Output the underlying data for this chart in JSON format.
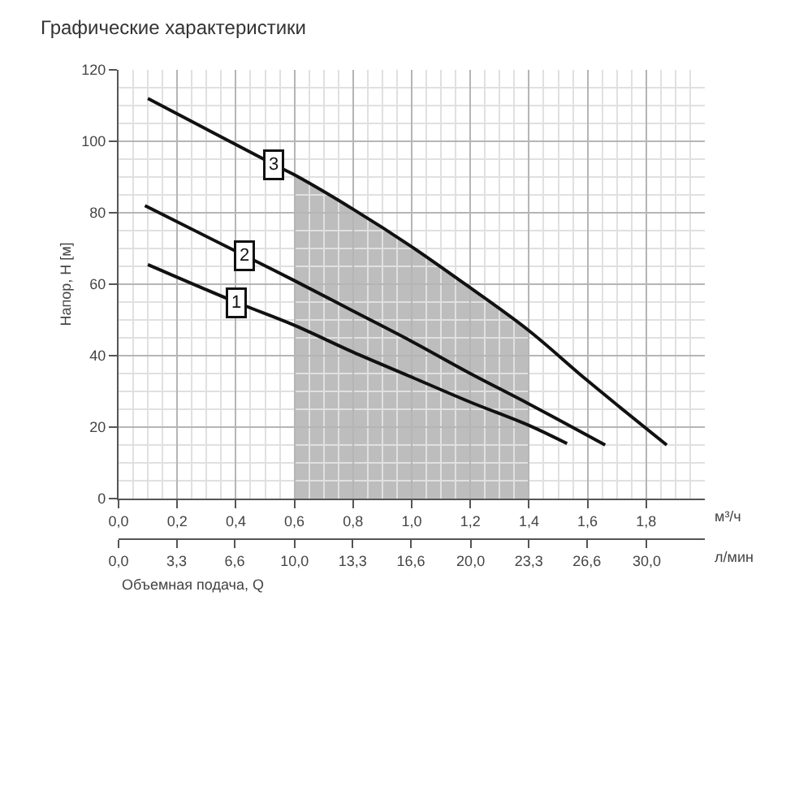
{
  "chart_data": {
    "type": "line",
    "title": "Графические характеристики",
    "xlabel": "м³/ч",
    "ylabel": "Напор, Н [м]",
    "x2label": "л/мин",
    "annotations": [
      "Объемная подача, Q"
    ],
    "xlim": [
      0,
      2.0
    ],
    "xticks": [
      {
        "value": 0,
        "label": "0,0"
      },
      {
        "value": 0.2,
        "label": "0,2"
      },
      {
        "value": 0.4,
        "label": "0,4"
      },
      {
        "value": 0.6,
        "label": "0,6"
      },
      {
        "value": 0.8,
        "label": "0,8"
      },
      {
        "value": 1.0,
        "label": "1,0"
      },
      {
        "value": 1.2,
        "label": "1,2"
      },
      {
        "value": 1.4,
        "label": "1,4"
      },
      {
        "value": 1.6,
        "label": "1,6"
      },
      {
        "value": 1.8,
        "label": "1,8"
      }
    ],
    "x2lim": [
      0,
      33.3
    ],
    "x2ticks": [
      {
        "value": 0,
        "label": "0,0"
      },
      {
        "value": 3.3,
        "label": "3,3"
      },
      {
        "value": 6.6,
        "label": "6,6"
      },
      {
        "value": 10,
        "label": "10,0"
      },
      {
        "value": 13.3,
        "label": "13,3"
      },
      {
        "value": 16.6,
        "label": "16,6"
      },
      {
        "value": 20,
        "label": "20,0"
      },
      {
        "value": 23.3,
        "label": "23,3"
      },
      {
        "value": 26.6,
        "label": "26,6"
      },
      {
        "value": 30,
        "label": "30,0"
      }
    ],
    "ylim": [
      0,
      120
    ],
    "yticks": [
      0,
      20,
      40,
      60,
      80,
      100,
      120
    ],
    "grid": true,
    "legend": false,
    "marker": "none",
    "line_style": "solid",
    "bands": [
      {
        "axis": "x",
        "from": 0.6,
        "to": 1.4,
        "color": "#bdbdbd"
      }
    ],
    "series": [
      {
        "name": "3",
        "color": "#111111",
        "x": [
          0.1,
          0.53,
          0.6,
          0.8,
          1.0,
          1.2,
          1.4,
          1.6,
          1.87
        ],
        "values": [
          112,
          93.5,
          90.6,
          81,
          70.5,
          59,
          47,
          33,
          15
        ]
      },
      {
        "name": "2",
        "color": "#111111",
        "x": [
          0.09,
          0.43,
          0.6,
          0.8,
          1.0,
          1.2,
          1.4,
          1.66
        ],
        "values": [
          82,
          68,
          61,
          52.5,
          44,
          35,
          26.5,
          15
        ]
      },
      {
        "name": "1",
        "color": "#111111",
        "x": [
          0.1,
          0.4,
          0.6,
          0.8,
          1.0,
          1.2,
          1.4,
          1.53
        ],
        "values": [
          65.5,
          55,
          48.5,
          41,
          34,
          27,
          20.5,
          15.4
        ]
      }
    ]
  }
}
